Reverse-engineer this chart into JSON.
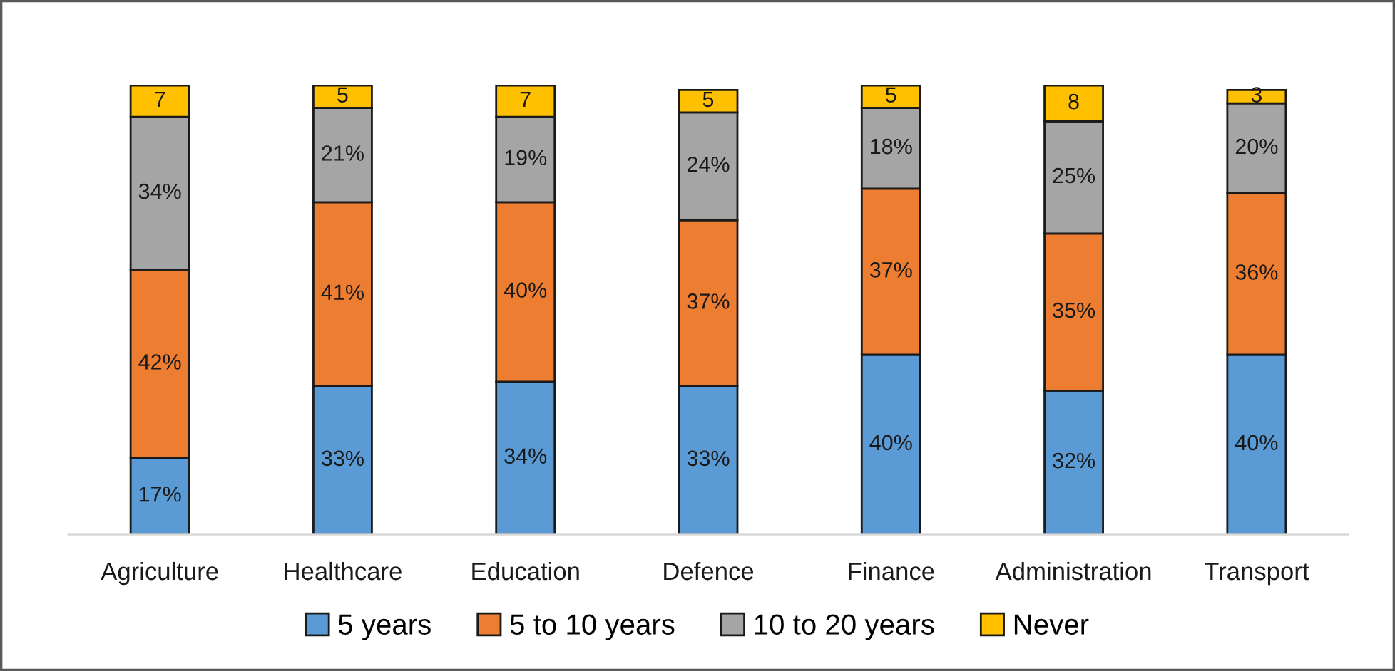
{
  "chart_data": {
    "type": "bar",
    "stacked": true,
    "tick_labels": "x",
    "legend": "bottom",
    "categories": [
      "Agriculture",
      "Healthcare",
      "Education",
      "Defence",
      "Finance",
      "Administration",
      "Transport"
    ],
    "series": [
      {
        "name": "5 years",
        "color": "#5b9bd5",
        "values": [
          17,
          33,
          34,
          33,
          40,
          32,
          40
        ],
        "value_labels": [
          "17%",
          "33%",
          "34%",
          "33%",
          "40%",
          "32%",
          "40%"
        ]
      },
      {
        "name": "5 to 10 years",
        "color": "#ed7d31",
        "values": [
          42,
          41,
          40,
          37,
          37,
          35,
          36
        ],
        "value_labels": [
          "42%",
          "41%",
          "40%",
          "37%",
          "37%",
          "35%",
          "36%"
        ]
      },
      {
        "name": "10 to 20 years",
        "color": "#a5a5a5",
        "values": [
          34,
          21,
          19,
          24,
          18,
          25,
          20
        ],
        "value_labels": [
          "34%",
          "21%",
          "19%",
          "24%",
          "18%",
          "25%",
          "20%"
        ]
      },
      {
        "name": "Never",
        "color": "#ffc000",
        "values": [
          7,
          5,
          7,
          5,
          5,
          8,
          3
        ],
        "value_labels": [
          "7",
          "5",
          "7",
          "5",
          "5",
          "8",
          "3"
        ]
      }
    ]
  }
}
